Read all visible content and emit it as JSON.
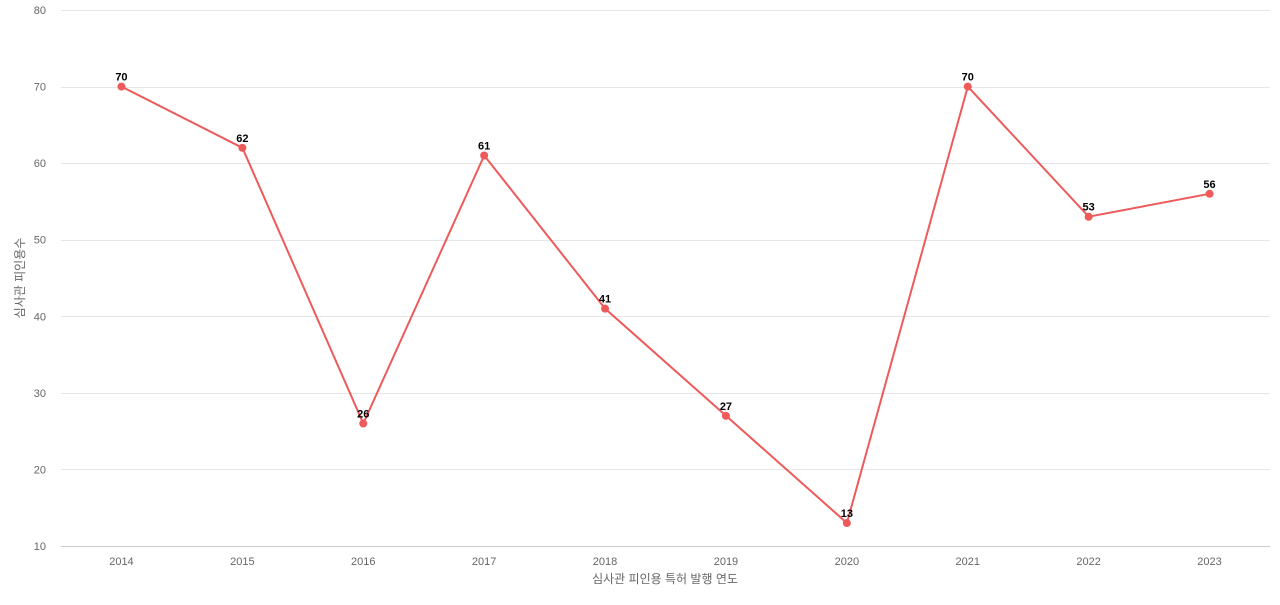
{
  "chart_data": {
    "type": "line",
    "title": "",
    "xlabel": "심사관 피인용 특허 발행 연도",
    "ylabel": "심사관 피인용수",
    "categories": [
      "2014",
      "2015",
      "2016",
      "2017",
      "2018",
      "2019",
      "2020",
      "2021",
      "2022",
      "2023"
    ],
    "series": [
      {
        "values": [
          70,
          62,
          26,
          61,
          41,
          27,
          13,
          70,
          53,
          56
        ],
        "color": "#ee5a5a"
      }
    ],
    "ylim": [
      10,
      80
    ],
    "yticks": [
      "10",
      "20",
      "30",
      "40",
      "50",
      "60",
      "70",
      "80"
    ],
    "grid": true,
    "data_labels": true,
    "legend": "none"
  }
}
